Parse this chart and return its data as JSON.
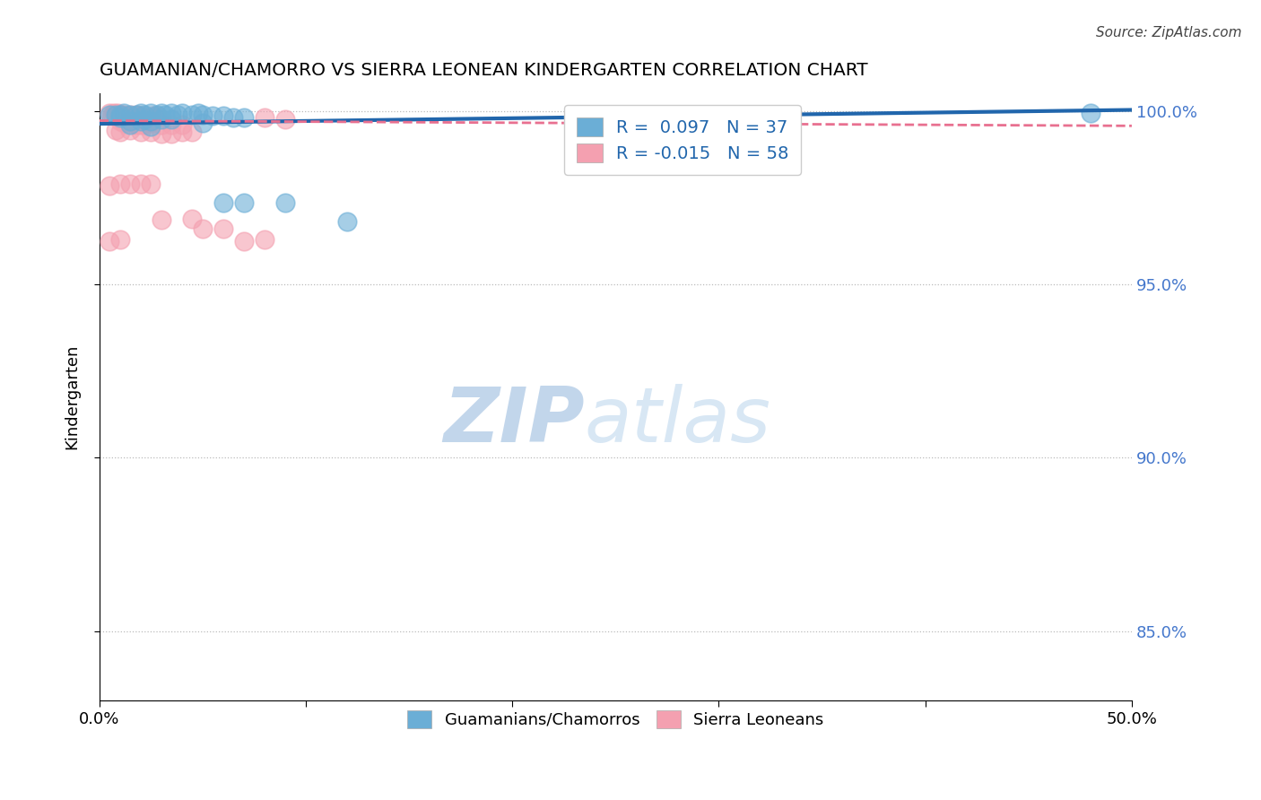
{
  "title": "GUAMANIAN/CHAMORRO VS SIERRA LEONEAN KINDERGARTEN CORRELATION CHART",
  "source": "Source: ZipAtlas.com",
  "xlabel": "",
  "ylabel": "Kindergarten",
  "xlim": [
    0.0,
    0.5
  ],
  "ylim": [
    0.83,
    1.005
  ],
  "yticks": [
    0.85,
    0.9,
    0.95,
    1.0
  ],
  "ytick_labels": [
    "85.0%",
    "90.0%",
    "95.0%",
    "100.0%"
  ],
  "xticks": [
    0.0,
    0.1,
    0.2,
    0.3,
    0.4,
    0.5
  ],
  "xtick_labels": [
    "0.0%",
    "",
    "",
    "",
    "",
    "50.0%"
  ],
  "legend_blue_r": "R =  0.097",
  "legend_blue_n": "N = 37",
  "legend_pink_r": "R = -0.015",
  "legend_pink_n": "N = 58",
  "blue_color": "#6baed6",
  "pink_color": "#f4a0b0",
  "trendline_blue_color": "#2166ac",
  "trendline_pink_color": "#e87090",
  "watermark_zip": "ZIP",
  "watermark_atlas": "atlas",
  "legend_label_blue": "Guamanians/Chamorros",
  "legend_label_pink": "Sierra Leoneans",
  "blue_trendline": [
    [
      0.0,
      0.9963
    ],
    [
      0.5,
      1.0003
    ]
  ],
  "pink_trendline": [
    [
      0.0,
      0.9972
    ],
    [
      0.5,
      0.9957
    ]
  ],
  "blue_scatter": [
    [
      0.005,
      0.999
    ],
    [
      0.008,
      0.999
    ],
    [
      0.01,
      0.999
    ],
    [
      0.012,
      0.9995
    ],
    [
      0.015,
      0.999
    ],
    [
      0.018,
      0.999
    ],
    [
      0.02,
      0.9995
    ],
    [
      0.022,
      0.999
    ],
    [
      0.025,
      0.9995
    ],
    [
      0.028,
      0.999
    ],
    [
      0.03,
      0.9995
    ],
    [
      0.032,
      0.999
    ],
    [
      0.035,
      0.9995
    ],
    [
      0.038,
      0.999
    ],
    [
      0.04,
      0.9995
    ],
    [
      0.045,
      0.999
    ],
    [
      0.048,
      0.9995
    ],
    [
      0.05,
      0.999
    ],
    [
      0.055,
      0.9985
    ],
    [
      0.01,
      0.998
    ],
    [
      0.015,
      0.997
    ],
    [
      0.02,
      0.997
    ],
    [
      0.022,
      0.9975
    ],
    [
      0.025,
      0.997
    ],
    [
      0.03,
      0.9975
    ],
    [
      0.035,
      0.9975
    ],
    [
      0.06,
      0.9985
    ],
    [
      0.065,
      0.998
    ],
    [
      0.07,
      0.998
    ],
    [
      0.015,
      0.996
    ],
    [
      0.025,
      0.9955
    ],
    [
      0.05,
      0.9965
    ],
    [
      0.06,
      0.9735
    ],
    [
      0.07,
      0.9735
    ],
    [
      0.09,
      0.9735
    ],
    [
      0.12,
      0.968
    ],
    [
      0.48,
      0.9995
    ]
  ],
  "pink_scatter": [
    [
      0.005,
      0.9995
    ],
    [
      0.006,
      0.999
    ],
    [
      0.007,
      0.9995
    ],
    [
      0.008,
      0.999
    ],
    [
      0.009,
      0.9995
    ],
    [
      0.01,
      0.999
    ],
    [
      0.011,
      0.9985
    ],
    [
      0.012,
      0.999
    ],
    [
      0.013,
      0.998
    ],
    [
      0.014,
      0.9985
    ],
    [
      0.015,
      0.999
    ],
    [
      0.016,
      0.998
    ],
    [
      0.017,
      0.9985
    ],
    [
      0.018,
      0.999
    ],
    [
      0.019,
      0.998
    ],
    [
      0.02,
      0.9985
    ],
    [
      0.021,
      0.998
    ],
    [
      0.022,
      0.9975
    ],
    [
      0.023,
      0.998
    ],
    [
      0.024,
      0.9975
    ],
    [
      0.025,
      0.998
    ],
    [
      0.026,
      0.9985
    ],
    [
      0.027,
      0.998
    ],
    [
      0.028,
      0.9985
    ],
    [
      0.01,
      0.997
    ],
    [
      0.012,
      0.9965
    ],
    [
      0.015,
      0.9975
    ],
    [
      0.018,
      0.996
    ],
    [
      0.02,
      0.996
    ],
    [
      0.022,
      0.996
    ],
    [
      0.025,
      0.9965
    ],
    [
      0.03,
      0.996
    ],
    [
      0.035,
      0.996
    ],
    [
      0.04,
      0.996
    ],
    [
      0.008,
      0.9945
    ],
    [
      0.01,
      0.994
    ],
    [
      0.015,
      0.9945
    ],
    [
      0.02,
      0.994
    ],
    [
      0.025,
      0.994
    ],
    [
      0.03,
      0.9935
    ],
    [
      0.035,
      0.9935
    ],
    [
      0.04,
      0.994
    ],
    [
      0.045,
      0.994
    ],
    [
      0.005,
      0.9785
    ],
    [
      0.01,
      0.979
    ],
    [
      0.015,
      0.979
    ],
    [
      0.02,
      0.979
    ],
    [
      0.025,
      0.979
    ],
    [
      0.005,
      0.9625
    ],
    [
      0.01,
      0.963
    ],
    [
      0.07,
      0.9625
    ],
    [
      0.08,
      0.963
    ],
    [
      0.03,
      0.9685
    ],
    [
      0.045,
      0.969
    ],
    [
      0.05,
      0.966
    ],
    [
      0.06,
      0.966
    ],
    [
      0.08,
      0.998
    ],
    [
      0.09,
      0.9975
    ]
  ]
}
